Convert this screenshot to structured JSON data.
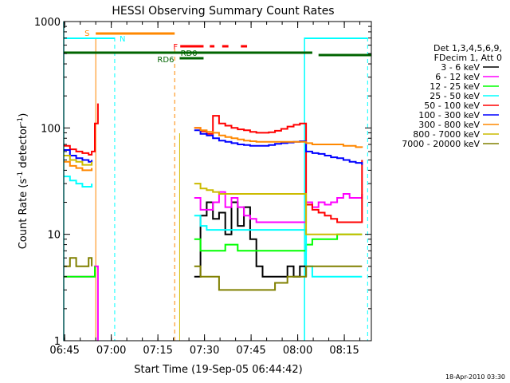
{
  "chart_data": {
    "type": "line",
    "title": "HESSI Observing Summary Count Rates",
    "xlabel": "Start Time (19-Sep-05 06:44:42)",
    "ylabel_main": "Count Rate (s",
    "ylabel_sup": "-1",
    "ylabel_mid": " detector",
    "ylabel_sup2": "-1",
    "ylabel_end": ")",
    "yscale": "log",
    "ylim": [
      1,
      1000
    ],
    "xlim_minutes": [
      0,
      99
    ],
    "x_ticks": [
      {
        "t": 0.3,
        "label": "06:45"
      },
      {
        "t": 15.3,
        "label": "07:00"
      },
      {
        "t": 30.3,
        "label": "07:15"
      },
      {
        "t": 45.3,
        "label": "07:30"
      },
      {
        "t": 60.3,
        "label": "07:45"
      },
      {
        "t": 75.3,
        "label": "08:00"
      },
      {
        "t": 90.3,
        "label": "08:15"
      }
    ],
    "y_ticks": [
      {
        "v": 1,
        "label": "1"
      },
      {
        "v": 10,
        "label": "10"
      },
      {
        "v": 100,
        "label": "100"
      },
      {
        "v": 1000,
        "label": "1000"
      }
    ],
    "legend_header": [
      "Det 1,3,4,5,6,9,",
      "FDecim 1, Att 0"
    ],
    "legend_placement": "right",
    "series": [
      {
        "name": "3 - 6 keV",
        "color": "#000000",
        "points": [
          [
            42,
            4
          ],
          [
            44,
            15
          ],
          [
            46,
            20
          ],
          [
            48,
            14
          ],
          [
            50,
            16
          ],
          [
            52,
            10
          ],
          [
            54,
            20
          ],
          [
            56,
            12
          ],
          [
            58,
            18
          ],
          [
            60,
            9
          ],
          [
            62,
            5
          ],
          [
            64,
            4
          ],
          [
            66,
            4
          ],
          [
            68,
            4
          ],
          [
            70,
            4
          ],
          [
            72,
            5
          ],
          [
            74,
            4
          ],
          [
            76,
            5
          ],
          [
            78,
            4
          ]
        ]
      },
      {
        "name": "6 - 12 keV",
        "color": "#ff00ff",
        "points": [
          [
            0,
            4
          ],
          [
            8,
            4
          ],
          [
            10,
            5
          ],
          [
            11,
            1
          ],
          [
            42,
            22
          ],
          [
            44,
            17
          ],
          [
            46,
            17
          ],
          [
            48,
            20
          ],
          [
            50,
            25
          ],
          [
            52,
            18
          ],
          [
            54,
            22
          ],
          [
            56,
            18
          ],
          [
            58,
            15
          ],
          [
            60,
            14
          ],
          [
            62,
            13
          ],
          [
            64,
            13
          ],
          [
            66,
            13
          ],
          [
            68,
            13
          ],
          [
            70,
            13
          ],
          [
            72,
            13
          ],
          [
            74,
            13
          ],
          [
            76,
            13
          ],
          [
            78,
            20
          ],
          [
            80,
            18
          ],
          [
            82,
            20
          ],
          [
            84,
            19
          ],
          [
            86,
            20
          ],
          [
            88,
            22
          ],
          [
            90,
            24
          ],
          [
            92,
            22
          ],
          [
            94,
            22
          ],
          [
            96,
            24
          ]
        ]
      },
      {
        "name": "12 - 25 keV",
        "color": "#00ff00",
        "points": [
          [
            0,
            4
          ],
          [
            6,
            4
          ],
          [
            8,
            4
          ],
          [
            10,
            5
          ],
          [
            42,
            9
          ],
          [
            44,
            7
          ],
          [
            46,
            7
          ],
          [
            48,
            7
          ],
          [
            50,
            7
          ],
          [
            52,
            8
          ],
          [
            54,
            8
          ],
          [
            56,
            7
          ],
          [
            58,
            7
          ],
          [
            60,
            7
          ],
          [
            62,
            7
          ],
          [
            64,
            7
          ],
          [
            66,
            7
          ],
          [
            68,
            7
          ],
          [
            70,
            7
          ],
          [
            72,
            7
          ],
          [
            74,
            7
          ],
          [
            76,
            7
          ],
          [
            78,
            8
          ],
          [
            80,
            9
          ],
          [
            82,
            9
          ],
          [
            84,
            9
          ],
          [
            86,
            9
          ],
          [
            88,
            10
          ],
          [
            90,
            10
          ],
          [
            92,
            10
          ],
          [
            94,
            10
          ],
          [
            96,
            10
          ]
        ]
      },
      {
        "name": "25 - 50 keV",
        "color": "#00ffff",
        "points": [
          [
            0,
            35
          ],
          [
            2,
            32
          ],
          [
            4,
            30
          ],
          [
            6,
            28
          ],
          [
            8,
            28
          ],
          [
            9,
            30
          ],
          [
            42,
            15
          ],
          [
            44,
            12
          ],
          [
            46,
            11
          ],
          [
            48,
            11
          ],
          [
            50,
            11
          ],
          [
            52,
            11
          ],
          [
            54,
            11
          ],
          [
            56,
            11
          ],
          [
            58,
            11
          ],
          [
            60,
            11
          ],
          [
            62,
            11
          ],
          [
            64,
            11
          ],
          [
            66,
            11
          ],
          [
            68,
            11
          ],
          [
            70,
            11
          ],
          [
            72,
            11
          ],
          [
            74,
            11
          ],
          [
            76,
            11
          ],
          [
            78,
            5
          ],
          [
            80,
            4
          ],
          [
            82,
            4
          ],
          [
            84,
            4
          ],
          [
            86,
            4
          ],
          [
            88,
            4
          ],
          [
            90,
            4
          ],
          [
            92,
            4
          ],
          [
            94,
            4
          ],
          [
            96,
            4
          ]
        ]
      },
      {
        "name": "50 - 100 keV",
        "color": "#ff0000",
        "points": [
          [
            0,
            68
          ],
          [
            2,
            63
          ],
          [
            4,
            60
          ],
          [
            6,
            58
          ],
          [
            8,
            56
          ],
          [
            9,
            60
          ],
          [
            10,
            110
          ],
          [
            11,
            170
          ],
          [
            42,
            100
          ],
          [
            44,
            93
          ],
          [
            46,
            88
          ],
          [
            48,
            130
          ],
          [
            50,
            110
          ],
          [
            52,
            105
          ],
          [
            54,
            100
          ],
          [
            56,
            97
          ],
          [
            58,
            95
          ],
          [
            60,
            92
          ],
          [
            62,
            90
          ],
          [
            64,
            90
          ],
          [
            66,
            91
          ],
          [
            68,
            94
          ],
          [
            70,
            98
          ],
          [
            72,
            103
          ],
          [
            74,
            107
          ],
          [
            76,
            110
          ],
          [
            78,
            19
          ],
          [
            80,
            17
          ],
          [
            82,
            16
          ],
          [
            84,
            15
          ],
          [
            86,
            14
          ],
          [
            88,
            13
          ],
          [
            90,
            13
          ],
          [
            92,
            13
          ],
          [
            94,
            13
          ],
          [
            96,
            50
          ]
        ]
      },
      {
        "name": "100 - 300 keV",
        "color": "#0000ff",
        "points": [
          [
            0,
            62
          ],
          [
            2,
            55
          ],
          [
            4,
            52
          ],
          [
            6,
            50
          ],
          [
            8,
            48
          ],
          [
            9,
            50
          ],
          [
            42,
            95
          ],
          [
            44,
            88
          ],
          [
            46,
            85
          ],
          [
            48,
            80
          ],
          [
            50,
            76
          ],
          [
            52,
            74
          ],
          [
            54,
            72
          ],
          [
            56,
            70
          ],
          [
            58,
            69
          ],
          [
            60,
            68
          ],
          [
            62,
            68
          ],
          [
            64,
            68
          ],
          [
            66,
            69
          ],
          [
            68,
            71
          ],
          [
            70,
            72
          ],
          [
            72,
            73
          ],
          [
            74,
            74
          ],
          [
            76,
            75
          ],
          [
            78,
            60
          ],
          [
            80,
            58
          ],
          [
            82,
            57
          ],
          [
            84,
            55
          ],
          [
            86,
            53
          ],
          [
            88,
            52
          ],
          [
            90,
            50
          ],
          [
            92,
            48
          ],
          [
            94,
            47
          ],
          [
            96,
            45
          ]
        ]
      },
      {
        "name": "300 - 800 keV",
        "color": "#ff8800",
        "points": [
          [
            0,
            48
          ],
          [
            2,
            44
          ],
          [
            4,
            42
          ],
          [
            6,
            40
          ],
          [
            8,
            40
          ],
          [
            9,
            42
          ],
          [
            42,
            100
          ],
          [
            44,
            95
          ],
          [
            46,
            92
          ],
          [
            48,
            90
          ],
          [
            50,
            85
          ],
          [
            52,
            82
          ],
          [
            54,
            80
          ],
          [
            56,
            78
          ],
          [
            58,
            76
          ],
          [
            60,
            75
          ],
          [
            62,
            74
          ],
          [
            64,
            74
          ],
          [
            66,
            74
          ],
          [
            68,
            74
          ],
          [
            70,
            74
          ],
          [
            72,
            74
          ],
          [
            74,
            74
          ],
          [
            76,
            74
          ],
          [
            78,
            72
          ],
          [
            80,
            70
          ],
          [
            82,
            70
          ],
          [
            84,
            70
          ],
          [
            86,
            70
          ],
          [
            88,
            70
          ],
          [
            90,
            68
          ],
          [
            92,
            68
          ],
          [
            94,
            66
          ],
          [
            96,
            65
          ]
        ]
      },
      {
        "name": "800 - 7000 keV",
        "color": "#ccbb00",
        "points": [
          [
            0,
            55
          ],
          [
            2,
            50
          ],
          [
            4,
            48
          ],
          [
            6,
            45
          ],
          [
            8,
            45
          ],
          [
            9,
            48
          ],
          [
            42,
            30
          ],
          [
            44,
            27
          ],
          [
            46,
            26
          ],
          [
            48,
            25
          ],
          [
            50,
            24
          ],
          [
            52,
            24
          ],
          [
            54,
            24
          ],
          [
            56,
            24
          ],
          [
            58,
            24
          ],
          [
            60,
            24
          ],
          [
            62,
            24
          ],
          [
            64,
            24
          ],
          [
            66,
            24
          ],
          [
            68,
            24
          ],
          [
            70,
            24
          ],
          [
            72,
            24
          ],
          [
            74,
            24
          ],
          [
            76,
            24
          ],
          [
            78,
            10
          ],
          [
            80,
            10
          ],
          [
            82,
            10
          ],
          [
            84,
            10
          ],
          [
            86,
            10
          ],
          [
            88,
            10
          ],
          [
            90,
            10
          ],
          [
            92,
            10
          ],
          [
            94,
            10
          ],
          [
            96,
            10
          ]
        ]
      },
      {
        "name": "7000 - 20000 keV",
        "color": "#808000",
        "points": [
          [
            0,
            5
          ],
          [
            2,
            6
          ],
          [
            4,
            5
          ],
          [
            6,
            5
          ],
          [
            8,
            6
          ],
          [
            9,
            5
          ],
          [
            42,
            5
          ],
          [
            44,
            4
          ],
          [
            46,
            4
          ],
          [
            48,
            4
          ],
          [
            50,
            3
          ],
          [
            52,
            3
          ],
          [
            54,
            3
          ],
          [
            56,
            3
          ],
          [
            58,
            3
          ],
          [
            60,
            3
          ],
          [
            62,
            3
          ],
          [
            64,
            3
          ],
          [
            66,
            3
          ],
          [
            68,
            3.5
          ],
          [
            70,
            3.5
          ],
          [
            72,
            4
          ],
          [
            74,
            4
          ],
          [
            76,
            4
          ],
          [
            78,
            5
          ],
          [
            80,
            5
          ],
          [
            82,
            5
          ],
          [
            84,
            5
          ],
          [
            86,
            5
          ],
          [
            88,
            5
          ],
          [
            90,
            5
          ],
          [
            92,
            5
          ],
          [
            94,
            5
          ],
          [
            96,
            5
          ]
        ]
      }
    ],
    "annotations": {
      "s_label": "S",
      "n_label": "N",
      "f_label": "F",
      "rd0_label": "RD0",
      "rd6_label": "RD6"
    },
    "timestamp": "18-Apr-2010 03:30",
    "colors": {
      "orange": "#ff8800",
      "cyan": "#00ffff",
      "red": "#ff0000",
      "green": "#006400"
    }
  }
}
